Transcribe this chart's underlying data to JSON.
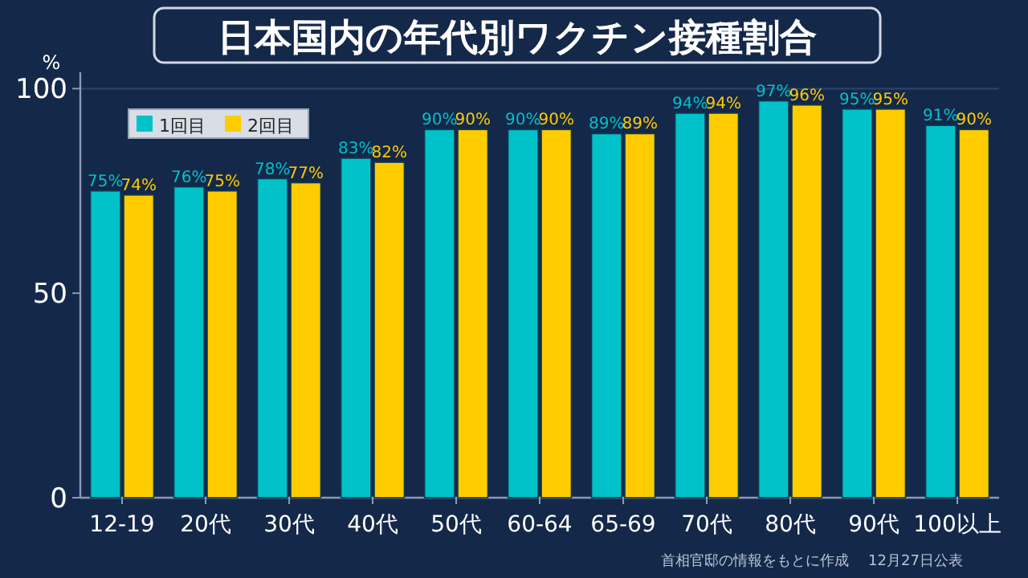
{
  "chart_data": {
    "type": "bar",
    "title": "日本国内の年代別ワクチン接種割合",
    "ylabel": "%",
    "categories": [
      "12-19",
      "20代",
      "30代",
      "40代",
      "50代",
      "60-64",
      "65-69",
      "70代",
      "80代",
      "90代",
      "100以上"
    ],
    "series": [
      {
        "name": "1回目",
        "color": "#00c2c8",
        "values": [
          75,
          76,
          78,
          83,
          90,
          90,
          89,
          94,
          97,
          95,
          91
        ],
        "value_labels": [
          "75%",
          "76%",
          "78%",
          "83%",
          "90%",
          "90%",
          "89%",
          "94%",
          "97%",
          "95%",
          "91%"
        ]
      },
      {
        "name": "2回目",
        "color": "#ffcc00",
        "values": [
          74,
          75,
          77,
          82,
          90,
          90,
          89,
          94,
          96,
          95,
          90
        ],
        "value_labels": [
          "74%",
          "75%",
          "77%",
          "82%",
          "90%",
          "90%",
          "89%",
          "94%",
          "96%",
          "95%",
          "90%"
        ]
      }
    ],
    "ylim": [
      0,
      104
    ],
    "yticks": [
      0,
      50,
      100
    ],
    "grid": false,
    "legend": "top left",
    "ref_lines": [
      {
        "axis": "y",
        "value": 100,
        "color": "#2e4468"
      }
    ],
    "annotations": [
      "首相官邸の情報をもとに作成",
      "12月27日公表"
    ]
  }
}
